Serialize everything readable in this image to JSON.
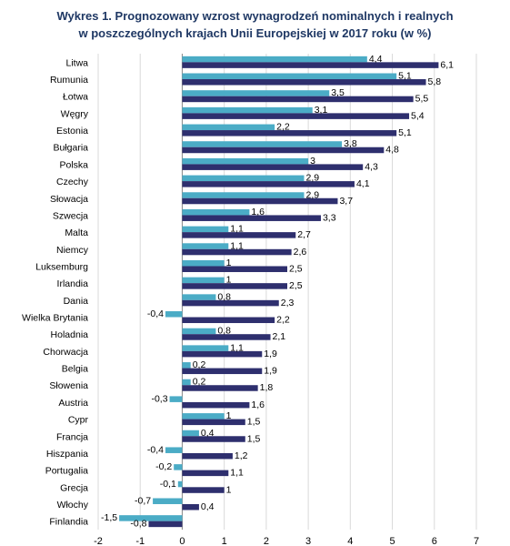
{
  "chart_data": {
    "type": "bar",
    "orientation": "horizontal",
    "title_lines": [
      "Wykres 1. Prognozowany wzrost wynagrodzeń nominalnych i realnych",
      "w poszczególnych krajach Unii Europejskiej w 2017 roku (w %)"
    ],
    "xlim": [
      -2,
      7
    ],
    "x_ticks": [
      "-2",
      "-1",
      "0",
      "1",
      "2",
      "3",
      "4",
      "5",
      "6",
      "7"
    ],
    "grid": "vertical",
    "legend": "none",
    "categories": [
      "Litwa",
      "Rumunia",
      "Łotwa",
      "Węgry",
      "Estonia",
      "Bułgaria",
      "Polska",
      "Czechy",
      "Słowacja",
      "Szwecja",
      "Malta",
      "Niemcy",
      "Luksemburg",
      "Irlandia",
      "Dania",
      "Wielka Brytania",
      "Holadnia",
      "Chorwacja",
      "Belgia",
      "Słowenia",
      "Austria",
      "Cypr",
      "Francja",
      "Hiszpania",
      "Portugalia",
      "Grecja",
      "Włochy",
      "Finlandia"
    ],
    "series": [
      {
        "color": "#4bacc6",
        "values": [
          4.4,
          5.1,
          3.5,
          3.1,
          2.2,
          3.8,
          3,
          2.9,
          2.9,
          1.6,
          1.1,
          1.1,
          1,
          1,
          0.8,
          -0.4,
          0.8,
          1.1,
          0.2,
          0.2,
          -0.3,
          1,
          0.4,
          -0.4,
          -0.2,
          -0.1,
          -0.7,
          -1.5
        ],
        "labels": [
          "4,4",
          "5,1",
          "3,5",
          "3,1",
          "2,2",
          "3,8",
          "3",
          "2,9",
          "2,9",
          "1,6",
          "1,1",
          "1,1",
          "1",
          "1",
          "0,8",
          "-0,4",
          "0,8",
          "1,1",
          "0,2",
          "0,2",
          "-0,3",
          "1",
          "0,4",
          "-0,4",
          "-0,2",
          "-0,1",
          "-0,7",
          "-1,5"
        ]
      },
      {
        "color": "#2e2f6e",
        "values": [
          6.1,
          5.8,
          5.5,
          5.4,
          5.1,
          4.8,
          4.3,
          4.1,
          3.7,
          3.3,
          2.7,
          2.6,
          2.5,
          2.5,
          2.3,
          2.2,
          2.1,
          1.9,
          1.9,
          1.8,
          1.6,
          1.5,
          1.5,
          1.2,
          1.1,
          1,
          0.4,
          -0.8
        ],
        "labels": [
          "6,1",
          "5,8",
          "5,5",
          "5,4",
          "5,1",
          "4,8",
          "4,3",
          "4,1",
          "3,7",
          "3,3",
          "2,7",
          "2,6",
          "2,5",
          "2,5",
          "2,3",
          "2,2",
          "2,1",
          "1,9",
          "1,9",
          "1,8",
          "1,6",
          "1,5",
          "1,5",
          "1,2",
          "1,1",
          "1",
          "0,4",
          "-0,8"
        ]
      }
    ]
  }
}
